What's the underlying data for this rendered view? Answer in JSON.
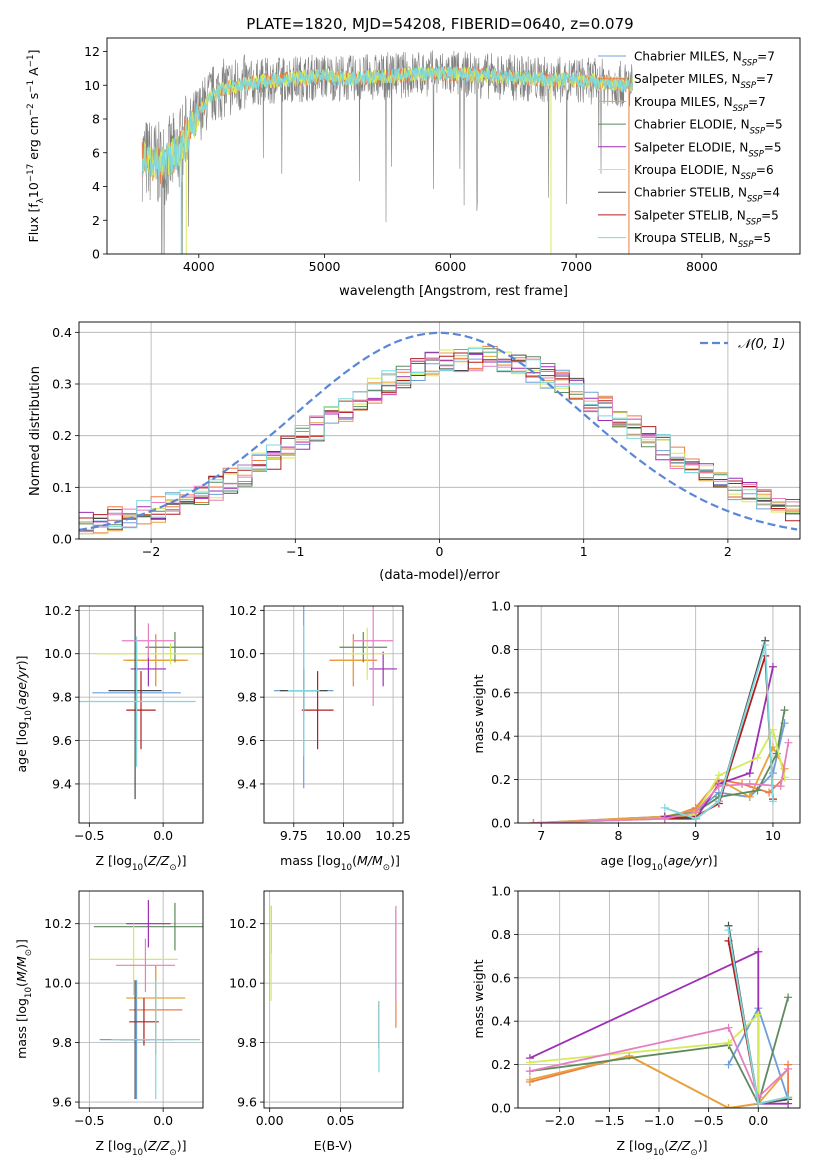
{
  "figure_title": "PLATE=1820, MJD=54208, FIBERID=0640, z=0.079",
  "colors": {
    "chabrier_miles": "#6f9fd8",
    "salpeter_miles": "#ee7c46",
    "kroupa_miles": "#e8a33a",
    "chabrier_elodie": "#5e8a5e",
    "salpeter_elodie": "#9c2fb5",
    "kroupa_elodie": "#d7ea5a",
    "chabrier_stelib": "#4a4a4a",
    "salpeter_stelib": "#b01e1e",
    "kroupa_stelib": "#7fd8dc",
    "gaussian": "#5b87d6",
    "obs": "#808080",
    "grid": "#b0b0b0"
  },
  "chart_data": [
    {
      "id": "spectrum",
      "type": "line",
      "title": "PLATE=1820, MJD=54208, FIBERID=0640, z=0.079",
      "xlabel": "wavelength [Angstrom, rest frame]",
      "ylabel": "Flux [f_λ 10^-17 erg cm^-2 s^-1 A^-1]",
      "xlim": [
        3270,
        8780
      ],
      "ylim": [
        0,
        12.8
      ],
      "xticks": [
        4000,
        5000,
        6000,
        7000,
        8000
      ],
      "yticks": [
        0,
        2,
        4,
        6,
        8,
        10,
        12
      ],
      "grid": false,
      "legend_position": "upper-right",
      "observed_flux_range": {
        "x": [
          3550,
          7450
        ],
        "y": [
          0.5,
          12.8
        ]
      },
      "continuum": {
        "x": [
          3550,
          3700,
          3850,
          3950,
          4100,
          4200,
          4400,
          4600,
          4800,
          5000,
          5200,
          5400,
          5600,
          5800,
          6000,
          6200,
          6400,
          6600,
          6800,
          7000,
          7200,
          7400
        ],
        "y": [
          5.7,
          5.2,
          6.2,
          7.8,
          9.4,
          9.8,
          10.1,
          10.3,
          10.4,
          10.5,
          10.4,
          10.5,
          10.6,
          10.7,
          10.7,
          10.6,
          10.5,
          10.4,
          10.3,
          10.3,
          10.2,
          10.0
        ]
      },
      "series": [
        {
          "name": "Chabrier MILES",
          "label_main": "Chabrier MILES, N",
          "n_ssp": "7",
          "color": "#6f9fd8"
        },
        {
          "name": "Salpeter MILES",
          "label_main": "Salpeter MILES, N",
          "n_ssp": "7",
          "color": "#ee7c46"
        },
        {
          "name": "Kroupa MILES",
          "label_main": "Kroupa MILES, N",
          "n_ssp": "7",
          "color": "#e8a33a"
        },
        {
          "name": "Chabrier ELODIE",
          "label_main": "Chabrier ELODIE, N",
          "n_ssp": "5",
          "color": "#5e8a5e"
        },
        {
          "name": "Salpeter ELODIE",
          "label_main": "Salpeter ELODIE, N",
          "n_ssp": "5",
          "color": "#9c2fb5"
        },
        {
          "name": "Kroupa ELODIE",
          "label_main": "Kroupa ELODIE, N",
          "n_ssp": "6",
          "color": "#d7ea5a"
        },
        {
          "name": "Chabrier STELIB",
          "label_main": "Chabrier STELIB, N",
          "n_ssp": "4",
          "color": "#4a4a4a"
        },
        {
          "name": "Salpeter STELIB",
          "label_main": "Salpeter STELIB, N",
          "n_ssp": "5",
          "color": "#b01e1e"
        },
        {
          "name": "Kroupa STELIB",
          "label_main": "Kroupa STELIB, N",
          "n_ssp": "5",
          "color": "#7fd8dc"
        }
      ],
      "legend_subscript": "SSP"
    },
    {
      "id": "residuals",
      "type": "line",
      "xlabel": "(data-model)/error",
      "ylabel": "Normed distribution",
      "xlim": [
        -2.5,
        2.5
      ],
      "ylim": [
        0,
        0.42
      ],
      "xticks": [
        -2,
        -1,
        0,
        1,
        2
      ],
      "yticks": [
        0.0,
        0.1,
        0.2,
        0.3,
        0.4
      ],
      "grid": true,
      "legend_position": "upper-right",
      "gaussian_label": "𝒩(0, 1)",
      "bin_width": 0.1
    },
    {
      "id": "age_vs_Z",
      "type": "scatter",
      "xlabel": "Z [log10(Z/Z☉)]",
      "ylabel": "age [log10(age/yr)]",
      "xlim": [
        -0.57,
        0.27
      ],
      "ylim": [
        9.22,
        10.22
      ],
      "xticks": [
        -0.5,
        0.0
      ],
      "yticks": [
        9.4,
        9.6,
        9.8,
        10.0,
        10.2
      ],
      "grid": true,
      "points": [
        {
          "x": -0.18,
          "y": 9.82,
          "xerr": 0.3,
          "yerr": 0.22,
          "color": "#6f9fd8"
        },
        {
          "x": -0.05,
          "y": 9.97,
          "xerr": 0.2,
          "yerr": 0.12,
          "color": "#ee7c46"
        },
        {
          "x": -0.05,
          "y": 9.97,
          "xerr": 0.22,
          "yerr": 0.1,
          "color": "#e8a33a"
        },
        {
          "x": 0.08,
          "y": 10.03,
          "xerr": 0.2,
          "yerr": 0.07,
          "color": "#5e8a5e"
        },
        {
          "x": -0.1,
          "y": 9.93,
          "xerr": 0.12,
          "yerr": 0.08,
          "color": "#9c2fb5"
        },
        {
          "x": 0.05,
          "y": 10.0,
          "xerr": 0.5,
          "yerr": 0.05,
          "color": "#d7ea5a"
        },
        {
          "x": -0.19,
          "y": 9.83,
          "xerr": 0.18,
          "yerr": 0.5,
          "color": "#4a4a4a"
        },
        {
          "x": -0.15,
          "y": 9.74,
          "xerr": 0.1,
          "yerr": 0.18,
          "color": "#b01e1e"
        },
        {
          "x": -0.1,
          "y": 10.06,
          "xerr": 0.18,
          "yerr": 0.08,
          "color": "#e67fbf"
        },
        {
          "x": -0.18,
          "y": 9.78,
          "xerr": 0.4,
          "yerr": 0.3,
          "color": "#7fd8dc"
        }
      ]
    },
    {
      "id": "age_vs_mass",
      "type": "scatter",
      "xlabel": "mass [log10(M/M☉)]",
      "ylabel": "",
      "xlim": [
        9.6,
        10.3
      ],
      "ylim": [
        9.22,
        10.22
      ],
      "xticks": [
        9.75,
        10.0,
        10.25
      ],
      "yticks": [
        9.4,
        9.6,
        9.8,
        10.0,
        10.2
      ],
      "grid": true,
      "points": [
        {
          "x": 9.8,
          "y": 9.83,
          "xerr": 0.15,
          "yerr": 0.45,
          "color": "#6f9fd8"
        },
        {
          "x": 10.05,
          "y": 9.97,
          "xerr": 0.12,
          "yerr": 0.12,
          "color": "#ee7c46"
        },
        {
          "x": 10.05,
          "y": 9.97,
          "xerr": 0.1,
          "yerr": 0.1,
          "color": "#e8a33a"
        },
        {
          "x": 10.1,
          "y": 10.03,
          "xerr": 0.12,
          "yerr": 0.07,
          "color": "#5e8a5e"
        },
        {
          "x": 10.2,
          "y": 9.93,
          "xerr": 0.07,
          "yerr": 0.08,
          "color": "#9c2fb5"
        },
        {
          "x": 10.12,
          "y": 10.0,
          "xerr": 0.1,
          "yerr": 0.12,
          "color": "#d7ea5a"
        },
        {
          "x": 9.8,
          "y": 9.83,
          "xerr": 0.12,
          "yerr": 0.1,
          "color": "#4a4a4a"
        },
        {
          "x": 9.87,
          "y": 9.74,
          "xerr": 0.08,
          "yerr": 0.18,
          "color": "#b01e1e"
        },
        {
          "x": 10.15,
          "y": 10.06,
          "xerr": 0.1,
          "yerr": 0.3,
          "color": "#e67fbf"
        },
        {
          "x": 9.8,
          "y": 9.83,
          "xerr": 0.08,
          "yerr": 0.3,
          "color": "#7fd8dc"
        }
      ]
    },
    {
      "id": "massweight_vs_age",
      "type": "line",
      "xlabel": "age [log10(age/yr)]",
      "ylabel": "mass weight",
      "xlim": [
        6.7,
        10.35
      ],
      "ylim": [
        0,
        1.0
      ],
      "xticks": [
        7,
        8,
        9,
        10
      ],
      "yticks": [
        0.0,
        0.2,
        0.4,
        0.6,
        0.8,
        1.0
      ],
      "grid": true,
      "series": [
        {
          "color": "#6f9fd8",
          "x": [
            6.9,
            8.6,
            9.0,
            9.3,
            9.7,
            10.0,
            10.15
          ],
          "y": [
            0.0,
            0.03,
            0.05,
            0.14,
            0.12,
            0.23,
            0.46
          ]
        },
        {
          "color": "#ee7c46",
          "x": [
            6.9,
            8.6,
            9.0,
            9.3,
            9.6,
            9.95,
            10.15
          ],
          "y": [
            0.0,
            0.02,
            0.07,
            0.2,
            0.18,
            0.14,
            0.21
          ]
        },
        {
          "color": "#e8a33a",
          "x": [
            6.9,
            8.6,
            9.0,
            9.3,
            9.7,
            10.0,
            10.15
          ],
          "y": [
            0.0,
            0.03,
            0.06,
            0.2,
            0.12,
            0.35,
            0.25
          ]
        },
        {
          "color": "#5e8a5e",
          "x": [
            8.6,
            9.0,
            9.3,
            9.8,
            10.05,
            10.15
          ],
          "y": [
            0.03,
            0.05,
            0.12,
            0.15,
            0.32,
            0.52
          ]
        },
        {
          "color": "#9c2fb5",
          "x": [
            8.6,
            9.0,
            9.3,
            9.7,
            10.0
          ],
          "y": [
            0.03,
            0.02,
            0.18,
            0.23,
            0.72
          ]
        },
        {
          "color": "#d7ea5a",
          "x": [
            6.9,
            8.6,
            9.0,
            9.3,
            9.8,
            10.0,
            10.15
          ],
          "y": [
            0.0,
            0.02,
            0.04,
            0.22,
            0.3,
            0.43,
            0.21
          ]
        },
        {
          "color": "#4a4a4a",
          "x": [
            8.6,
            9.0,
            9.3,
            9.9
          ],
          "y": [
            0.02,
            0.02,
            0.1,
            0.84
          ]
        },
        {
          "color": "#b01e1e",
          "x": [
            8.6,
            9.0,
            9.3,
            9.9,
            10.0
          ],
          "y": [
            0.02,
            0.03,
            0.09,
            0.77,
            0.11
          ]
        },
        {
          "color": "#e67fbf",
          "x": [
            6.9,
            8.6,
            9.0,
            9.3,
            9.7,
            10.1,
            10.2
          ],
          "y": [
            0.0,
            0.02,
            0.05,
            0.17,
            0.18,
            0.17,
            0.37
          ]
        },
        {
          "color": "#7fd8dc",
          "x": [
            8.6,
            9.0,
            9.3,
            9.9,
            10.0
          ],
          "y": [
            0.07,
            0.02,
            0.1,
            0.82,
            0.1
          ]
        }
      ]
    },
    {
      "id": "mass_vs_Z",
      "type": "scatter",
      "xlabel": "Z [log10(Z/Z☉)]",
      "ylabel": "mass [log10(M/M☉)]",
      "xlim": [
        -0.57,
        0.27
      ],
      "ylim": [
        9.58,
        10.31
      ],
      "xticks": [
        -0.5,
        0.0
      ],
      "yticks": [
        9.6,
        9.8,
        10.0,
        10.2
      ],
      "grid": true,
      "points": [
        {
          "x": -0.18,
          "y": 9.81,
          "xerr": 0.25,
          "yerr": 0.2,
          "color": "#6f9fd8"
        },
        {
          "x": -0.05,
          "y": 9.91,
          "xerr": 0.18,
          "yerr": 0.15,
          "color": "#ee7c46"
        },
        {
          "x": -0.05,
          "y": 9.95,
          "xerr": 0.2,
          "yerr": 0.1,
          "color": "#e8a33a"
        },
        {
          "x": 0.08,
          "y": 10.19,
          "xerr": 0.55,
          "yerr": 0.08,
          "color": "#5e8a5e"
        },
        {
          "x": -0.1,
          "y": 10.2,
          "xerr": 0.15,
          "yerr": 0.08,
          "color": "#9c2fb5"
        },
        {
          "x": -0.2,
          "y": 10.08,
          "xerr": 0.3,
          "yerr": 0.12,
          "color": "#d7ea5a"
        },
        {
          "x": -0.19,
          "y": 9.81,
          "xerr": 0.1,
          "yerr": 0.2,
          "color": "#4a4a4a"
        },
        {
          "x": -0.13,
          "y": 9.87,
          "xerr": 0.1,
          "yerr": 0.08,
          "color": "#b01e1e"
        },
        {
          "x": -0.12,
          "y": 10.06,
          "xerr": 0.2,
          "yerr": 0.09,
          "color": "#e67fbf"
        },
        {
          "x": -0.05,
          "y": 9.81,
          "xerr": 0.3,
          "yerr": 0.2,
          "color": "#7fd8dc"
        }
      ]
    },
    {
      "id": "mass_vs_ebv",
      "type": "scatter",
      "xlabel": "E(B-V)",
      "ylabel": "",
      "xlim": [
        -0.004,
        0.094
      ],
      "ylim": [
        9.58,
        10.31
      ],
      "xticks": [
        0.0,
        0.05
      ],
      "yticks": [
        9.6,
        9.8,
        10.0,
        10.2
      ],
      "grid": true,
      "points": [
        {
          "x": 0.001,
          "y": 10.18,
          "xerr": 0,
          "yerr": 0.08,
          "color": "#9c2fb5"
        },
        {
          "x": 0.001,
          "y": 10.1,
          "xerr": 0,
          "yerr": 0.16,
          "color": "#d7ea5a"
        },
        {
          "x": 0.077,
          "y": 9.86,
          "xerr": 0,
          "yerr": 0.08,
          "color": "#b01e1e"
        },
        {
          "x": 0.077,
          "y": 9.82,
          "xerr": 0,
          "yerr": 0.12,
          "color": "#7fd8dc"
        },
        {
          "x": 0.089,
          "y": 10.05,
          "xerr": 0,
          "yerr": 0.2,
          "color": "#ee7c46"
        },
        {
          "x": 0.089,
          "y": 10.1,
          "xerr": 0,
          "yerr": 0.16,
          "color": "#e67fbf"
        }
      ]
    },
    {
      "id": "massweight_vs_Z",
      "type": "line",
      "xlabel": "Z [log10(Z/Z☉)]",
      "ylabel": "mass weight",
      "xlim": [
        -2.42,
        0.42
      ],
      "ylim": [
        0,
        1.0
      ],
      "xticks": [
        -2.0,
        -1.5,
        -1.0,
        -0.5,
        0.0
      ],
      "yticks": [
        0.0,
        0.2,
        0.4,
        0.6,
        0.8,
        1.0
      ],
      "grid": true,
      "series": [
        {
          "color": "#6f9fd8",
          "x": [
            -0.3,
            0.0,
            0.3
          ],
          "y": [
            0.2,
            0.46,
            0.04
          ]
        },
        {
          "color": "#ee7c46",
          "x": [
            -2.3,
            -1.3,
            -0.3,
            0.0,
            0.3,
            0.3
          ],
          "y": [
            0.12,
            0.24,
            0.0,
            0.02,
            0.04,
            0.2
          ]
        },
        {
          "color": "#e8a33a",
          "x": [
            -2.3,
            -1.3,
            -0.3,
            0.0,
            0.3
          ],
          "y": [
            0.13,
            0.24,
            0.0,
            0.02,
            0.18
          ]
        },
        {
          "color": "#5e8a5e",
          "x": [
            -2.3,
            -0.3,
            0.0,
            0.3
          ],
          "y": [
            0.17,
            0.29,
            0.02,
            0.51
          ]
        },
        {
          "color": "#9c2fb5",
          "x": [
            -2.3,
            0.0,
            0.0,
            0.3
          ],
          "y": [
            0.23,
            0.72,
            0.02,
            0.02
          ]
        },
        {
          "color": "#d7ea5a",
          "x": [
            -2.3,
            -0.3,
            0.0,
            0.0,
            0.3
          ],
          "y": [
            0.21,
            0.3,
            0.43,
            0.02,
            0.04
          ]
        },
        {
          "color": "#4a4a4a",
          "x": [
            -0.3,
            0.0,
            0.3
          ],
          "y": [
            0.84,
            0.02,
            0.04
          ]
        },
        {
          "color": "#b01e1e",
          "x": [
            -0.3,
            0.0,
            0.3
          ],
          "y": [
            0.77,
            0.02,
            0.05
          ]
        },
        {
          "color": "#e67fbf",
          "x": [
            -2.3,
            -0.3,
            0.0,
            0.3
          ],
          "y": [
            0.17,
            0.37,
            0.05,
            0.18
          ]
        },
        {
          "color": "#7fd8dc",
          "x": [
            -0.3,
            0.0,
            0.3
          ],
          "y": [
            0.82,
            0.02,
            0.05
          ]
        }
      ]
    }
  ]
}
